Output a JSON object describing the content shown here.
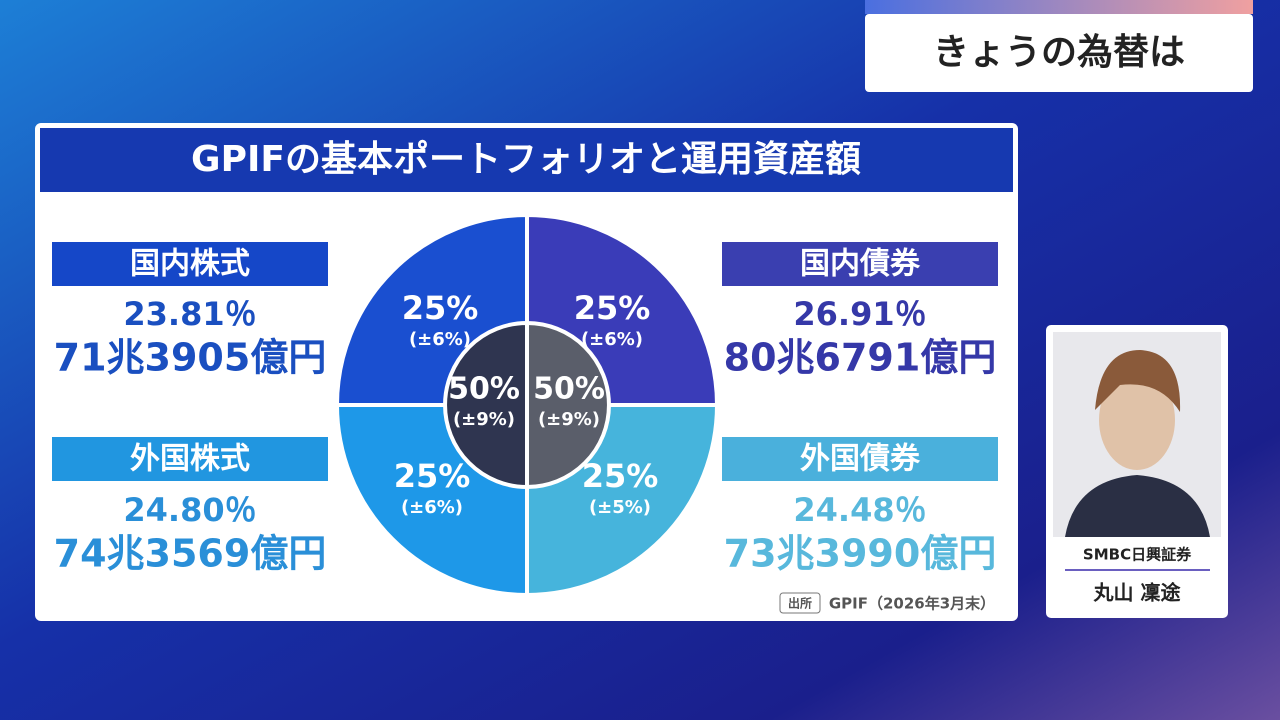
{
  "banner": {
    "title": "きょうの為替は"
  },
  "panel": {
    "title": "GPIFの基本ポートフォリオと運用資産額",
    "assets": [
      {
        "name": "国内株式",
        "ratio": "23.81％",
        "amount": "71兆3905億円"
      },
      {
        "name": "国内債券",
        "ratio": "26.91％",
        "amount": "80兆6791億円"
      },
      {
        "name": "外国株式",
        "ratio": "24.80％",
        "amount": "74兆3569億円"
      },
      {
        "name": "外国債券",
        "ratio": "24.48％",
        "amount": "73兆3990億円"
      }
    ],
    "donut": {
      "outer": [
        {
          "share": "25%",
          "range": "(±6%)"
        },
        {
          "share": "25%",
          "range": "(±6%)"
        },
        {
          "share": "25%",
          "range": "(±6%)"
        },
        {
          "share": "25%",
          "range": "(±5%)"
        }
      ],
      "inner": [
        {
          "share": "50%",
          "range": "(±9%)"
        },
        {
          "share": "50%",
          "range": "(±9%)"
        }
      ]
    },
    "source": {
      "label": "出所",
      "text": "GPIF（2026年3月末）"
    }
  },
  "presenter": {
    "company": "SMBC日興証券",
    "name": "丸山 凜途"
  }
}
